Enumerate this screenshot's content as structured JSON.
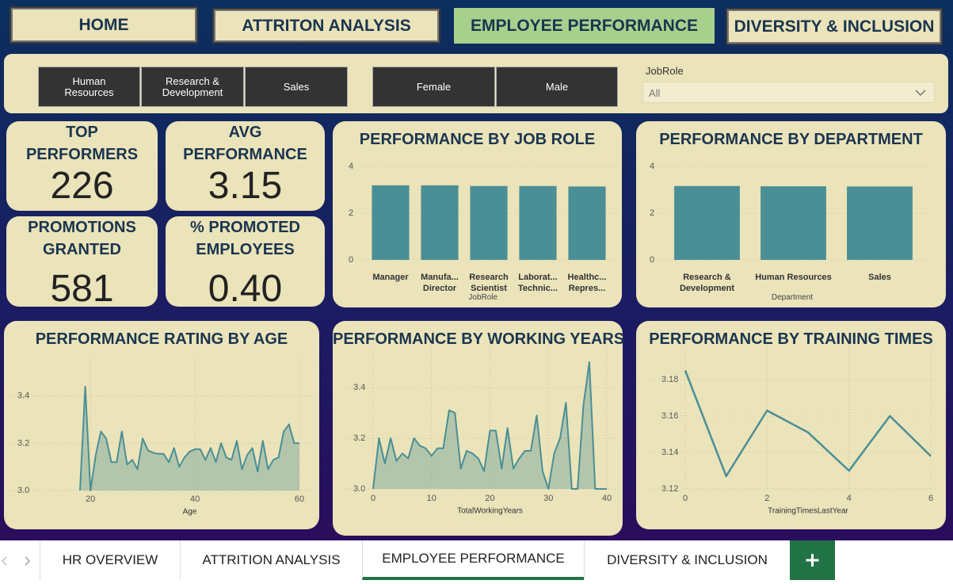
{
  "nav": [
    "HOME",
    "ATTRITON ANALYSIS",
    "EMPLOYEE PERFORMANCE",
    "DIVERSITY & INCLUSION"
  ],
  "filters": {
    "departments": [
      "Human Resources",
      "Research & Development",
      "Sales"
    ],
    "genders": [
      "Female",
      "Male"
    ],
    "jobrole": {
      "label": "JobRole",
      "value": "All"
    }
  },
  "kpis": [
    {
      "label": "TOP PERFORMERS",
      "value": "226"
    },
    {
      "label": "AVG PERFORMANCE",
      "value": "3.15"
    },
    {
      "label": "PROMOTIONS GRANTED",
      "value": "581"
    },
    {
      "label": "% PROMOTED EMPLOYEES",
      "value": "0.40"
    }
  ],
  "chart_data": [
    {
      "type": "bar",
      "title": "PERFORMANCE BY JOB ROLE",
      "categories": [
        "Manager",
        "Manufa... Director",
        "Research Scientist",
        "Laborat... Technic...",
        "Healthc... Repres..."
      ],
      "values": [
        3.19,
        3.19,
        3.16,
        3.16,
        3.14
      ],
      "color": "#4a8f96",
      "xlabel": "JobRole",
      "ylim": [
        0,
        4
      ],
      "yticks": [
        0,
        2,
        4
      ],
      "grid": true
    },
    {
      "type": "bar",
      "title": "PERFORMANCE BY DEPARTMENT",
      "categories": [
        "Research & Development",
        "Human Resources",
        "Sales"
      ],
      "values": [
        3.16,
        3.15,
        3.14
      ],
      "color": "#4a8f96",
      "xlabel": "Department",
      "ylim": [
        0,
        4
      ],
      "yticks": [
        0,
        2,
        4
      ],
      "grid": true
    },
    {
      "type": "area",
      "title": "PERFORMANCE RATING BY AGE",
      "x": [
        18,
        19,
        20,
        21,
        22,
        23,
        24,
        25,
        26,
        27,
        28,
        29,
        30,
        31,
        32,
        33,
        34,
        35,
        36,
        37,
        38,
        39,
        40,
        41,
        42,
        43,
        44,
        45,
        46,
        47,
        48,
        49,
        50,
        51,
        52,
        53,
        54,
        55,
        56,
        57,
        58,
        59,
        60
      ],
      "values": [
        3.0,
        3.44,
        3.0,
        3.15,
        3.25,
        3.22,
        3.12,
        3.12,
        3.25,
        3.11,
        3.13,
        3.09,
        3.22,
        3.17,
        3.16,
        3.155,
        3.155,
        3.12,
        3.18,
        3.1,
        3.14,
        3.165,
        3.175,
        3.175,
        3.13,
        3.18,
        3.12,
        3.2,
        3.14,
        3.13,
        3.21,
        3.09,
        3.15,
        3.18,
        3.08,
        3.21,
        3.09,
        3.13,
        3.14,
        3.25,
        3.28,
        3.2,
        3.2
      ],
      "color": "#4a8f96",
      "xlabel": "Age",
      "xlim": [
        18,
        60
      ],
      "xticks": [
        20,
        40,
        60
      ],
      "ylim": [
        3.0,
        3.5
      ],
      "yticks": [
        {
          "value": 3.0,
          "label": "3.0"
        },
        3.2,
        3.4
      ],
      "grid": true
    },
    {
      "type": "area",
      "title": "PERFORMANCE BY WORKING YEARS",
      "x": [
        0,
        1,
        2,
        3,
        4,
        5,
        6,
        7,
        8,
        9,
        10,
        11,
        12,
        13,
        14,
        15,
        16,
        17,
        18,
        19,
        20,
        21,
        22,
        23,
        24,
        25,
        26,
        27,
        28,
        29,
        30,
        31,
        32,
        33,
        34,
        35,
        36,
        37,
        38,
        39,
        40
      ],
      "values": [
        3.0,
        3.2,
        3.1,
        3.2,
        3.11,
        3.14,
        3.12,
        3.2,
        3.17,
        3.16,
        3.13,
        3.16,
        3.16,
        3.31,
        3.3,
        3.08,
        3.15,
        3.14,
        3.12,
        3.07,
        3.23,
        3.23,
        3.08,
        3.24,
        3.08,
        3.12,
        3.15,
        3.15,
        3.29,
        3.07,
        3.0,
        3.14,
        3.2,
        3.34,
        3.0,
        3.0,
        3.33,
        3.5,
        3.0,
        3.0,
        3.0
      ],
      "color": "#4a8f96",
      "xlabel": "TotalWorkingYears",
      "xlim": [
        0,
        40
      ],
      "xticks": [
        0,
        10,
        20,
        30,
        40
      ],
      "ylim": [
        3.0,
        3.55
      ],
      "yticks": [
        {
          "value": 3.0,
          "label": "3.0"
        },
        3.2,
        3.4
      ],
      "grid": true
    },
    {
      "type": "line",
      "title": "PERFORMANCE BY TRAINING TIMES",
      "x": [
        0,
        1,
        2,
        3,
        4,
        5,
        6
      ],
      "values": [
        3.185,
        3.127,
        3.163,
        3.151,
        3.13,
        3.16,
        3.138
      ],
      "color": "#4a8f96",
      "xlabel": "TrainingTimesLastYear",
      "xlim": [
        0,
        6
      ],
      "xticks": [
        0,
        2,
        4,
        6
      ],
      "ylim": [
        3.12,
        3.19
      ],
      "yticks": [
        3.12,
        3.14,
        3.16,
        3.18
      ],
      "grid": true
    }
  ],
  "tabs": [
    "HR OVERVIEW",
    "ATTRITION ANALYSIS",
    "EMPLOYEE PERFORMANCE",
    "DIVERSITY & INCLUSION"
  ],
  "active_tab": 2
}
